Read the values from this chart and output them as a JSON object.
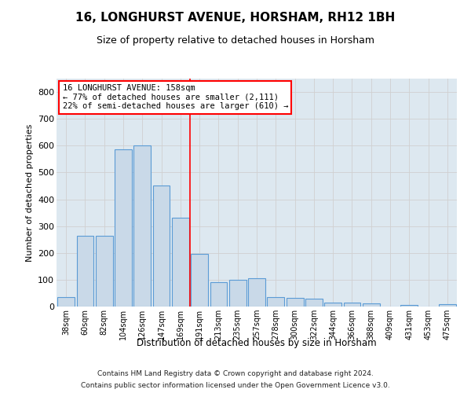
{
  "title": "16, LONGHURST AVENUE, HORSHAM, RH12 1BH",
  "subtitle": "Size of property relative to detached houses in Horsham",
  "xlabel": "Distribution of detached houses by size in Horsham",
  "ylabel": "Number of detached properties",
  "footer1": "Contains HM Land Registry data © Crown copyright and database right 2024.",
  "footer2": "Contains public sector information licensed under the Open Government Licence v3.0.",
  "categories": [
    "38sqm",
    "60sqm",
    "82sqm",
    "104sqm",
    "126sqm",
    "147sqm",
    "169sqm",
    "191sqm",
    "213sqm",
    "235sqm",
    "257sqm",
    "278sqm",
    "300sqm",
    "322sqm",
    "344sqm",
    "366sqm",
    "388sqm",
    "409sqm",
    "431sqm",
    "453sqm",
    "475sqm"
  ],
  "values": [
    35,
    265,
    265,
    585,
    600,
    450,
    330,
    195,
    90,
    100,
    105,
    35,
    33,
    30,
    15,
    15,
    12,
    0,
    6,
    0,
    8
  ],
  "bar_color": "#c9d9e8",
  "bar_edge_color": "#5b9bd5",
  "grid_color": "#d0d0d0",
  "bg_color": "#dde8f0",
  "vline_color": "red",
  "vline_x_idx": 6.5,
  "annotation_text": "16 LONGHURST AVENUE: 158sqm\n← 77% of detached houses are smaller (2,111)\n22% of semi-detached houses are larger (610) →",
  "annotation_box_color": "red",
  "annotation_box_facecolor": "white",
  "ylim": [
    0,
    850
  ],
  "yticks": [
    0,
    100,
    200,
    300,
    400,
    500,
    600,
    700,
    800
  ]
}
